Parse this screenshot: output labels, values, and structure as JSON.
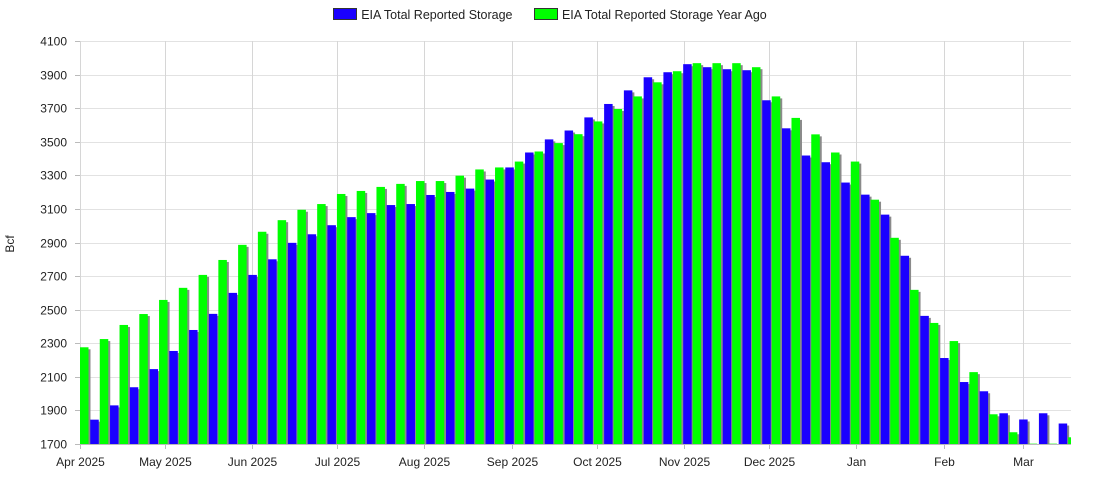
{
  "chart_data": {
    "type": "bar",
    "title": "",
    "xlabel": "",
    "ylabel": "Bcf",
    "ylim": [
      1700,
      4100
    ],
    "yticks": [
      1700,
      1900,
      2100,
      2300,
      2500,
      2700,
      2900,
      3100,
      3300,
      3500,
      3700,
      3900,
      4100
    ],
    "grid": true,
    "legend_position": "top-center",
    "x_start_date": "2025-04-01",
    "x_step_days": 7,
    "x_range_dates": [
      "2025-04-01",
      "2026-03-18"
    ],
    "month_ticks": [
      {
        "date": "2025-04-01",
        "label": "Apr 2025"
      },
      {
        "date": "2025-05-01",
        "label": "May 2025"
      },
      {
        "date": "2025-06-01",
        "label": "Jun 2025"
      },
      {
        "date": "2025-07-01",
        "label": "Jul 2025"
      },
      {
        "date": "2025-08-01",
        "label": "Aug 2025"
      },
      {
        "date": "2025-09-01",
        "label": "Sep 2025"
      },
      {
        "date": "2025-10-01",
        "label": "Oct 2025"
      },
      {
        "date": "2025-11-01",
        "label": "Nov 2025"
      },
      {
        "date": "2025-12-01",
        "label": "Dec 2025"
      },
      {
        "date": "2026-01-01",
        "label": "Jan"
      },
      {
        "date": "2026-02-01",
        "label": "Feb"
      },
      {
        "date": "2026-03-01",
        "label": "Mar"
      }
    ],
    "series": [
      {
        "name": "EIA Total Reported Storage",
        "color": "#1a00ff",
        "values": [
          null,
          1845,
          1930,
          2038,
          2146,
          2254,
          2379,
          2475,
          2600,
          2707,
          2800,
          2898,
          2949,
          3003,
          3051,
          3075,
          3123,
          3129,
          3183,
          3201,
          3221,
          3275,
          3347,
          3436,
          3514,
          3567,
          3645,
          3725,
          3806,
          3884,
          3914,
          3962,
          3944,
          3932,
          3926,
          3747,
          3580,
          3418,
          3378,
          3257,
          3185,
          3066,
          2821,
          2463,
          2212,
          2069,
          2014,
          1883,
          1846,
          1883,
          1822
        ]
      },
      {
        "name": "EIA Total Reported Storage Year Ago",
        "color": "#00ff00",
        "values": [
          2276,
          2325,
          2409,
          2474,
          2558,
          2630,
          2707,
          2796,
          2886,
          2964,
          3033,
          3095,
          3129,
          3189,
          3207,
          3231,
          3249,
          3266,
          3266,
          3298,
          3335,
          3347,
          3382,
          3442,
          3492,
          3545,
          3621,
          3695,
          3770,
          3854,
          3920,
          3968,
          3968,
          3968,
          3944,
          3770,
          3642,
          3544,
          3436,
          3382,
          3155,
          2928,
          2618,
          2421,
          2313,
          2128,
          1877,
          1770,
          1702,
          1702,
          1740
        ]
      }
    ]
  }
}
